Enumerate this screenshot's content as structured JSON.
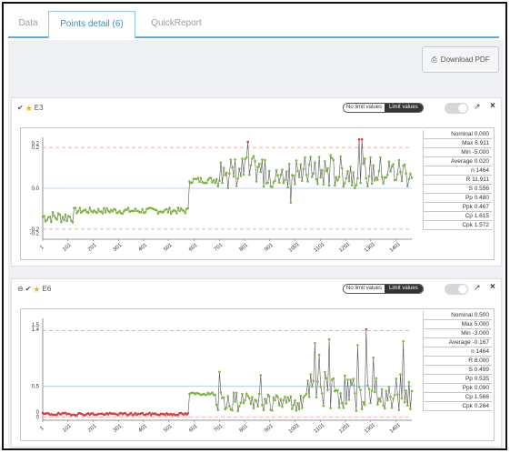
{
  "tabs": [
    {
      "label": "Data",
      "active": false
    },
    {
      "label": "Points detail (6)",
      "active": true
    },
    {
      "label": "QuickReport",
      "active": false
    }
  ],
  "toolbar": {
    "download_label": "Download PDF",
    "download_icon": "printer-icon"
  },
  "panels": [
    {
      "name": "E3",
      "icons": [
        "check-circle-icon",
        "star-icon"
      ],
      "toggle": {
        "off_label": "No limit values",
        "on_label": "Limit values"
      },
      "stats": [
        "Nominal 0.000",
        "Max 6.911",
        "Min -5.000",
        "Average 0.020",
        "n 1464",
        "R 11.911",
        "S 0.556",
        "Pp 0.480",
        "Ppk 0.467",
        "Cp 1.615",
        "Cpk 1.572"
      ],
      "chart_data": {
        "type": "line",
        "y_ticks": [
          "0.2",
          "0.2",
          "0.0",
          "-0.2",
          "-0.2"
        ],
        "x_ticks": [
          "1",
          "101",
          "201",
          "301",
          "401",
          "501",
          "601",
          "701",
          "801",
          "901",
          "1001",
          "1101",
          "1201",
          "1301",
          "1401"
        ],
        "ylim": [
          -0.25,
          0.25
        ],
        "xlim": [
          1,
          1464
        ],
        "limits": {
          "upper": 0.2,
          "lower": -0.2,
          "nominal": 0.0
        },
        "colors": {
          "line": "#555555",
          "point": "#7cb83c",
          "out_point": "#e03b3b",
          "limit": "#f2a0a0",
          "nominal": "#a8c8e8"
        }
      }
    },
    {
      "name": "E6",
      "icons": [
        "minus-circle-icon",
        "check-circle-icon",
        "star-icon"
      ],
      "toggle": {
        "off_label": "No limit values",
        "on_label": "Limit values"
      },
      "stats": [
        "Nominal 0.500",
        "Max 5.000",
        "Min -3.000",
        "Average -0.167",
        "n 1464",
        "R 8.000",
        "S 0.499",
        "Pp 0.535",
        "Ppk 0.090",
        "Cp 1.566",
        "Cpk 0.264"
      ],
      "chart_data": {
        "type": "line",
        "y_ticks": [
          "1.5",
          "1.4",
          "0.5",
          "0",
          "0"
        ],
        "x_ticks": [
          "1",
          "101",
          "201",
          "301",
          "401",
          "501",
          "601",
          "701",
          "801",
          "901",
          "1001",
          "1101",
          "1201",
          "1301",
          "1401"
        ],
        "ylim": [
          -0.05,
          1.6
        ],
        "xlim": [
          1,
          1464
        ],
        "limits": {
          "upper": 1.4,
          "lower": 0.0,
          "nominal": 0.5
        },
        "colors": {
          "line": "#555555",
          "point": "#7cb83c",
          "out_point": "#e03b3b",
          "limit": "#f2a0a0",
          "nominal": "#a8c8e8"
        }
      }
    }
  ]
}
